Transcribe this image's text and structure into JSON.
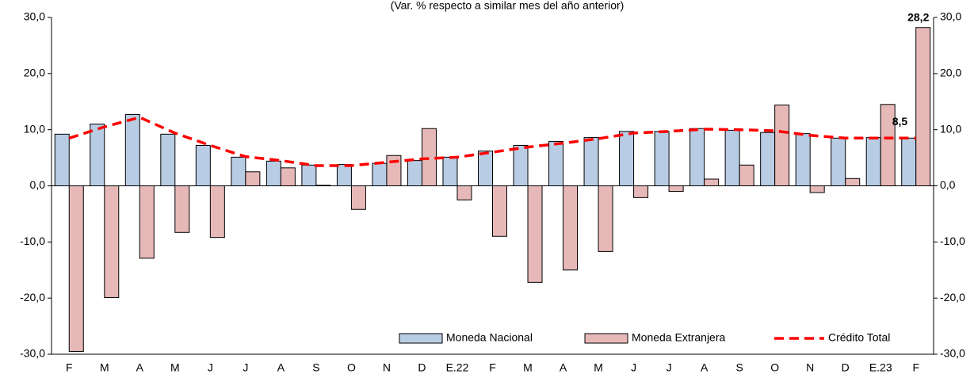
{
  "chart_data": {
    "type": "bar-line",
    "subtitle": "(Var. % respecto a similar mes del año anterior)",
    "categories": [
      "F",
      "M",
      "A",
      "M",
      "J",
      "J",
      "A",
      "S",
      "O",
      "N",
      "D",
      "E.22",
      "F",
      "M",
      "A",
      "M",
      "J",
      "J",
      "A",
      "S",
      "O",
      "N",
      "D",
      "E.23",
      "F"
    ],
    "series": [
      {
        "name": "Moneda Nacional",
        "type": "bar",
        "color": "#b8cce4",
        "values": [
          9.2,
          11.0,
          12.7,
          9.2,
          7.2,
          5.1,
          4.4,
          3.7,
          3.8,
          4.0,
          4.5,
          5.1,
          6.2,
          7.2,
          7.9,
          8.6,
          9.7,
          9.7,
          10.2,
          9.9,
          9.5,
          9.3,
          8.5,
          8.6,
          8.5
        ]
      },
      {
        "name": "Moneda Extranjera",
        "type": "bar",
        "color": "#e6b9b8",
        "values": [
          -29.5,
          -19.9,
          -12.9,
          -8.3,
          -9.2,
          2.5,
          3.2,
          0.1,
          -4.2,
          5.4,
          10.2,
          -2.5,
          -9.0,
          -17.2,
          -15.0,
          -11.7,
          -2.1,
          -1.0,
          1.2,
          3.7,
          14.4,
          -1.2,
          1.3,
          14.5,
          28.2
        ],
        "value_labels": [
          null,
          null,
          null,
          null,
          null,
          null,
          null,
          null,
          null,
          null,
          null,
          null,
          null,
          null,
          null,
          null,
          null,
          null,
          null,
          null,
          null,
          null,
          null,
          null,
          "28,2"
        ]
      },
      {
        "name": "Crédito Total",
        "type": "line",
        "color": "#ff0000",
        "values": [
          8.5,
          10.5,
          12.2,
          9.4,
          7.2,
          5.2,
          4.5,
          3.6,
          3.6,
          4.2,
          4.8,
          5.1,
          6.0,
          6.9,
          7.6,
          8.4,
          9.4,
          9.7,
          10.1,
          10.0,
          9.8,
          9.0,
          8.5,
          8.5,
          8.5
        ],
        "value_labels": [
          null,
          null,
          null,
          null,
          null,
          null,
          null,
          null,
          null,
          null,
          null,
          null,
          null,
          null,
          null,
          null,
          null,
          null,
          null,
          null,
          null,
          null,
          null,
          null,
          "8,5"
        ]
      }
    ],
    "ylim": [
      -30,
      30
    ],
    "yticks": [
      {
        "value": -30,
        "label": "-30,0"
      },
      {
        "value": -20,
        "label": "-20,0"
      },
      {
        "value": -10,
        "label": "-10,0"
      },
      {
        "value": 0,
        "label": "0,0"
      },
      {
        "value": 10,
        "label": "10,0"
      },
      {
        "value": 20,
        "label": "20,0"
      },
      {
        "value": 30,
        "label": "30,0"
      }
    ],
    "y2lim": [
      -30,
      30
    ],
    "y2ticks": [
      {
        "value": -30,
        "label": "-30,0"
      },
      {
        "value": -20,
        "label": "-20,0"
      },
      {
        "value": -10,
        "label": "-10,0"
      },
      {
        "value": 0,
        "label": "0,0"
      },
      {
        "value": 10,
        "label": "10,0"
      },
      {
        "value": 20,
        "label": "20,0"
      },
      {
        "value": 30,
        "label": "30,0"
      }
    ],
    "grid": false
  }
}
